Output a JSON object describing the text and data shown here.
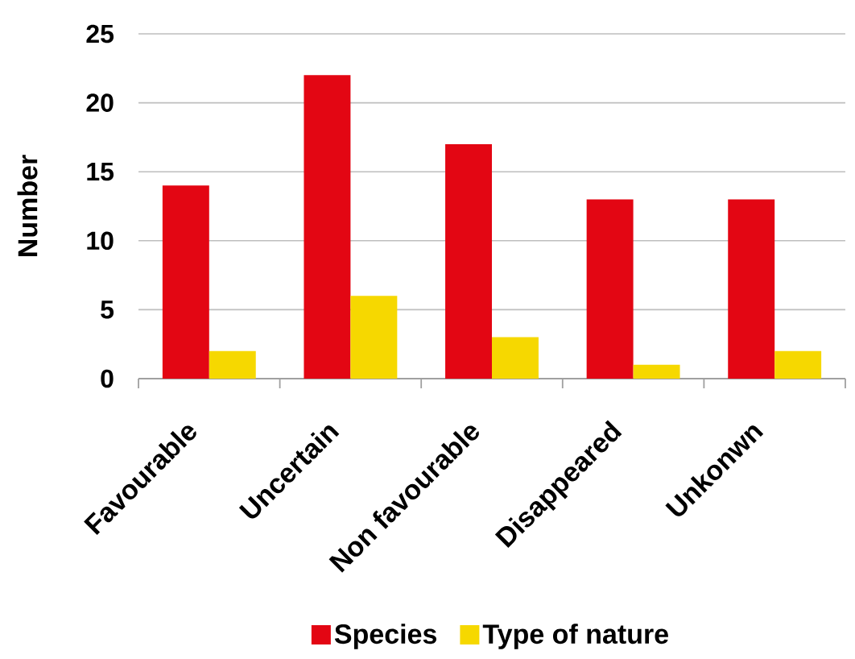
{
  "chart_data": {
    "type": "bar",
    "ylabel": "Number",
    "categories": [
      "Favourable",
      "Uncertain",
      "Non favourable",
      "Disappeared",
      "Unkonwn"
    ],
    "series": [
      {
        "name": "Species",
        "color": "#e30613",
        "values": [
          14,
          22,
          17,
          13,
          13
        ]
      },
      {
        "name": "Type of nature",
        "color": "#f6d800",
        "values": [
          2,
          6,
          3,
          1,
          2
        ]
      }
    ],
    "ylim": [
      0,
      25
    ],
    "yticks": [
      0,
      5,
      10,
      15,
      20,
      25
    ],
    "grid": "y",
    "legend": "bottom"
  }
}
